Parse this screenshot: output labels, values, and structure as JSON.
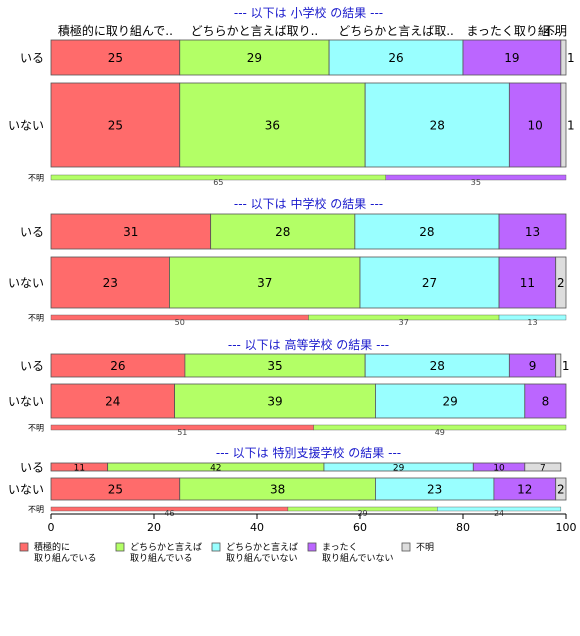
{
  "chart_data": {
    "type": "bar",
    "orientation": "horizontal",
    "stacked": true,
    "xlim": [
      0,
      100
    ],
    "x_ticks": [
      0,
      20,
      40,
      60,
      80,
      100
    ],
    "category_headers": [
      "積極的に取り組んで..",
      "どちらかと言えば取り..",
      "どちらかと言えば取..",
      "まったく取り組..",
      "不明"
    ],
    "legend": {
      "position": "bottom",
      "items": [
        {
          "label": "積極的に\n取り組んでいる",
          "color": "#ff6b6b"
        },
        {
          "label": "どちらかと言えば\n取り組んでいる",
          "color": "#b3ff66"
        },
        {
          "label": "どちらかと言えば\n取り組んでいない",
          "color": "#99ffff"
        },
        {
          "label": "まったく\n取り組んでいない",
          "color": "#bb66ff"
        },
        {
          "label": "不明",
          "color": "#dddddd"
        }
      ]
    },
    "panels": [
      {
        "title": "--- 以下は 小学校 の結果 ---",
        "rows": [
          {
            "label": "いる",
            "values": [
              25,
              29,
              26,
              19,
              1
            ],
            "labels": [
              "25",
              "29",
              "26",
              "19",
              "1"
            ]
          },
          {
            "label": "いない",
            "values": [
              25,
              36,
              28,
              10,
              1
            ],
            "labels": [
              "25",
              "36",
              "28",
              "10",
              "1"
            ]
          }
        ],
        "unknown": {
          "label": "不明",
          "values": [
            0,
            65,
            0,
            35,
            0
          ],
          "labels": [
            "",
            "65",
            "",
            "35",
            ""
          ]
        }
      },
      {
        "title": "--- 以下は 中学校 の結果 ---",
        "rows": [
          {
            "label": "いる",
            "values": [
              31,
              28,
              28,
              13,
              0
            ],
            "labels": [
              "31",
              "28",
              "28",
              "13",
              ""
            ]
          },
          {
            "label": "いない",
            "values": [
              23,
              37,
              27,
              11,
              2
            ],
            "labels": [
              "23",
              "37",
              "27",
              "11",
              "2"
            ]
          }
        ],
        "unknown": {
          "label": "不明",
          "values": [
            50,
            37,
            13,
            0,
            0
          ],
          "labels": [
            "50",
            "37",
            "13",
            "",
            ""
          ]
        }
      },
      {
        "title": "--- 以下は 高等学校 の結果 ---",
        "rows": [
          {
            "label": "いる",
            "values": [
              26,
              35,
              28,
              9,
              1
            ],
            "labels": [
              "26",
              "35",
              "28",
              "9",
              "1"
            ]
          },
          {
            "label": "いない",
            "values": [
              24,
              39,
              29,
              8,
              0
            ],
            "labels": [
              "24",
              "39",
              "29",
              "8",
              ""
            ]
          }
        ],
        "unknown": {
          "label": "不明",
          "values": [
            51,
            49,
            0,
            0,
            0
          ],
          "labels": [
            "51",
            "49",
            "",
            "",
            ""
          ]
        }
      },
      {
        "title": "--- 以下は 特別支援学校 の結果 ---",
        "rows": [
          {
            "label": "いる",
            "values": [
              11,
              42,
              29,
              10,
              7
            ],
            "labels": [
              "11",
              "42",
              "29",
              "10",
              "7"
            ]
          },
          {
            "label": "いない",
            "values": [
              25,
              38,
              23,
              12,
              2
            ],
            "labels": [
              "25",
              "38",
              "23",
              "12",
              "2"
            ]
          }
        ],
        "unknown": {
          "label": "不明",
          "values": [
            46,
            29,
            24,
            0,
            0
          ],
          "labels": [
            "46",
            "29",
            "24",
            "",
            ""
          ]
        }
      }
    ]
  }
}
